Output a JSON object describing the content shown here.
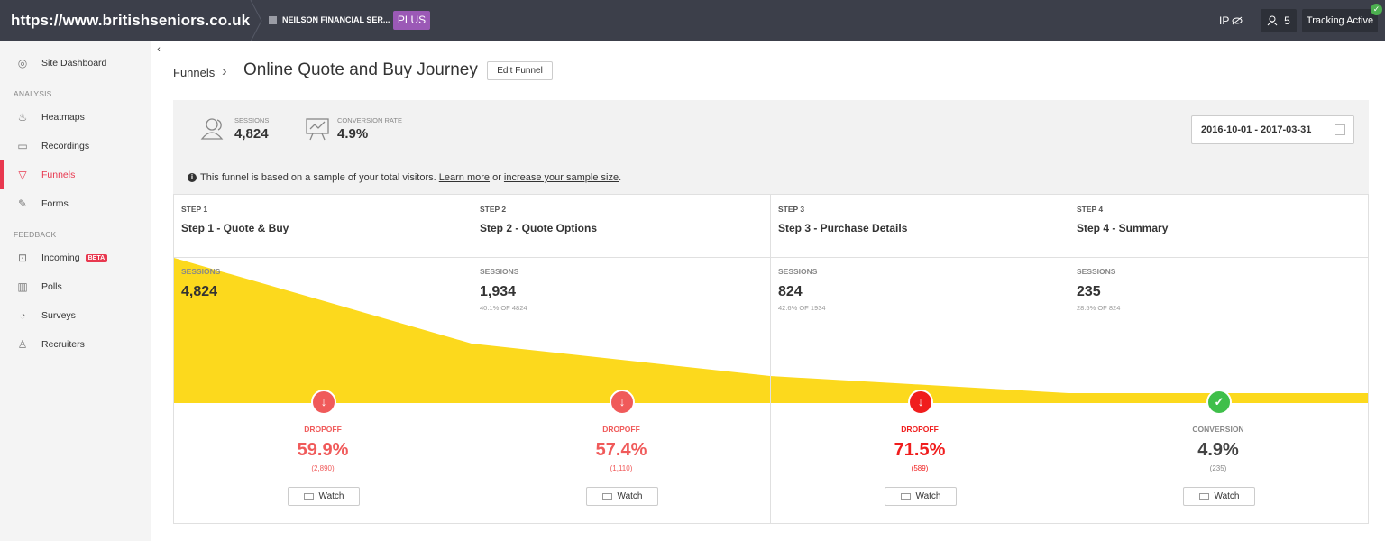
{
  "topbar": {
    "site_url": "https://www.britishseniors.co.uk",
    "org_name": "NEILSON FINANCIAL SER...",
    "plan_badge": "PLUS",
    "ip_label": "IP",
    "users_count": "5",
    "tracking_status": "Tracking Active"
  },
  "sidebar": {
    "dashboard": "Site Dashboard",
    "analysis_heading": "ANALYSIS",
    "heatmaps": "Heatmaps",
    "recordings": "Recordings",
    "funnels": "Funnels",
    "forms": "Forms",
    "feedback_heading": "FEEDBACK",
    "incoming": "Incoming",
    "incoming_badge": "BETA",
    "polls": "Polls",
    "surveys": "Surveys",
    "recruiters": "Recruiters"
  },
  "header": {
    "breadcrumb": "Funnels",
    "title": "Online Quote and Buy Journey",
    "edit_button": "Edit Funnel"
  },
  "summary": {
    "sessions_label": "SESSIONS",
    "sessions_value": "4,824",
    "conversion_label": "CONVERSION RATE",
    "conversion_value": "4.9%",
    "date_range": "2016-10-01 - 2017-03-31"
  },
  "sample_notice": {
    "text": "This funnel is based on a sample of your total visitors.",
    "learn_more": "Learn more",
    "or": "or",
    "increase": "increase your sample size",
    "end": "."
  },
  "funnel": {
    "sessions_label": "SESSIONS",
    "watch_label": "Watch",
    "steps": [
      {
        "step": "STEP 1",
        "name": "Step 1 - Quote & Buy",
        "sessions": "4,824",
        "pct": "",
        "result_label": "DROPOFF",
        "result_pct": "59.9%",
        "result_count": "(2,890)",
        "type": "dropoff"
      },
      {
        "step": "STEP 2",
        "name": "Step 2 - Quote Options",
        "sessions": "1,934",
        "pct": "40.1% OF 4824",
        "result_label": "DROPOFF",
        "result_pct": "57.4%",
        "result_count": "(1,110)",
        "type": "dropoff"
      },
      {
        "step": "STEP 3",
        "name": "Step 3 - Purchase Details",
        "sessions": "824",
        "pct": "42.6% OF 1934",
        "result_label": "DROPOFF",
        "result_pct": "71.5%",
        "result_count": "(589)",
        "type": "dropoff-high"
      },
      {
        "step": "STEP 4",
        "name": "Step 4 - Summary",
        "sessions": "235",
        "pct": "28.5% OF 824",
        "result_label": "CONVERSION",
        "result_pct": "4.9%",
        "result_count": "(235)",
        "type": "conversion"
      }
    ]
  },
  "colors": {
    "accent": "#e8384f",
    "funnel_fill": "#fcd91d",
    "dropoff": "#f05a5a",
    "dropoff_high": "#f01d1d",
    "conversion": "#3fbf4a",
    "topbar": "#3c3f4a"
  }
}
